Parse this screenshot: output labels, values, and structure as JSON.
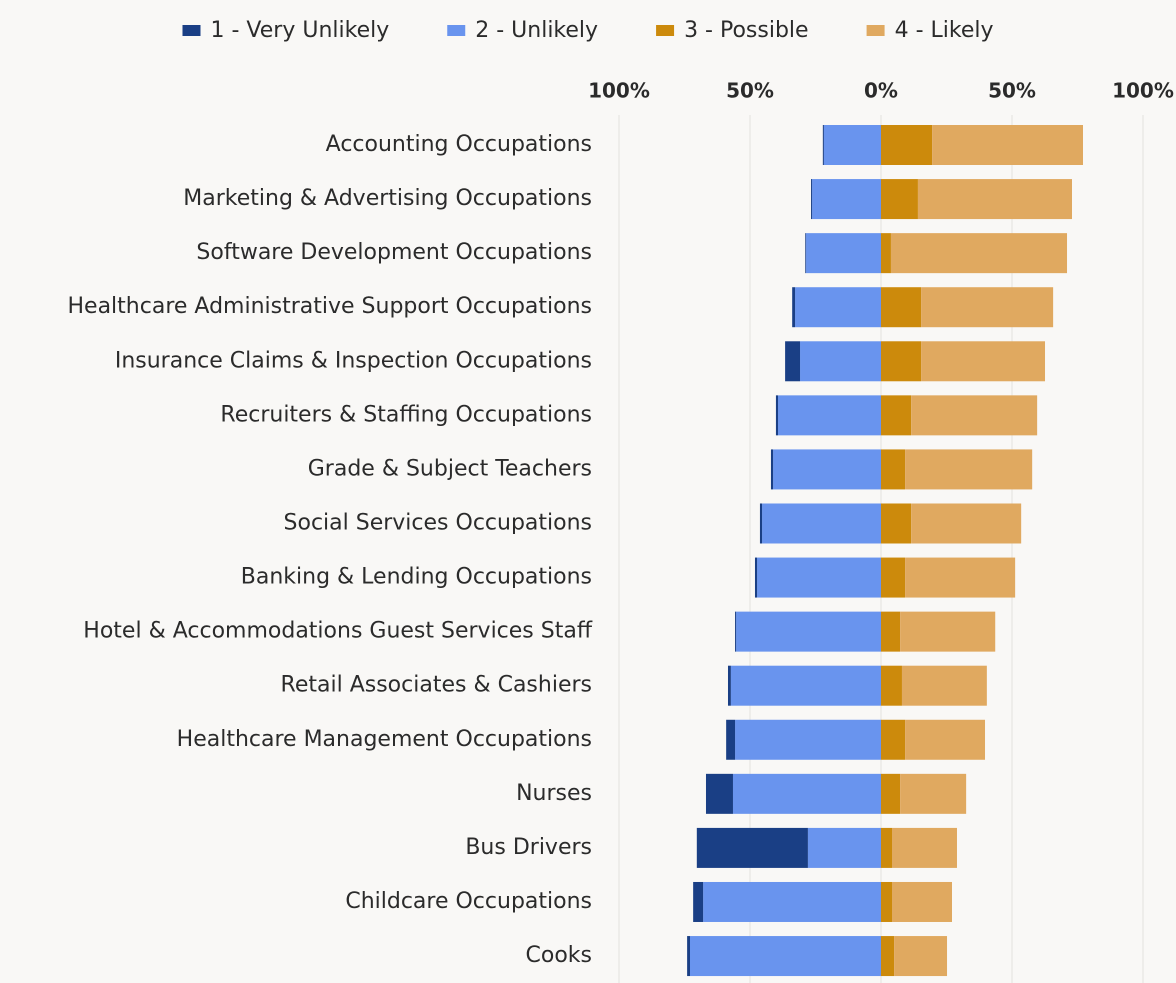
{
  "chart_data": {
    "type": "diverging_bar",
    "categories": [
      "Accounting Occupations",
      "Marketing & Advertising Occupations",
      "Software Development Occupations",
      "Healthcare Administrative Support Occupations",
      "Insurance Claims & Inspection Occupations",
      "Recruiters & Staffing Occupations",
      "Grade & Subject Teachers",
      "Social Services Occupations",
      "Banking & Lending Occupations",
      "Hotel & Accommodations Guest Services Staff",
      "Retail Associates & Cashiers",
      "Healthcare Management Occupations",
      "Nurses",
      "Bus Drivers",
      "Childcare Occupations",
      "Cooks"
    ],
    "series": [
      {
        "name": "1 - Very Unlikely",
        "color": "#1a3f85",
        "values": [
          -0.4,
          -0.4,
          -0.3,
          -1.1,
          -5.7,
          -0.8,
          -0.8,
          -0.8,
          -0.8,
          -0.4,
          -1.1,
          -3.4,
          -10.3,
          -42.4,
          -3.8,
          -1.1
        ]
      },
      {
        "name": "2 - Unlikely",
        "color": "#6994ee",
        "values": [
          -21.8,
          -26.3,
          -28.6,
          -32.8,
          -30.9,
          -39.3,
          -41.2,
          -45.4,
          -47.3,
          -55.3,
          -57.3,
          -55.7,
          -56.5,
          -27.9,
          -67.9,
          -72.9
        ]
      },
      {
        "name": "3 - Possible",
        "color": "#cc8a0c",
        "values": [
          19.5,
          14.1,
          3.8,
          15.3,
          15.3,
          11.5,
          9.2,
          11.5,
          9.2,
          7.3,
          8,
          9.2,
          7.3,
          4.2,
          4.2,
          5
        ]
      },
      {
        "name": "4 - Likely",
        "color": "#e0a960",
        "values": [
          57.6,
          58.8,
          67.2,
          50.4,
          47.3,
          48.1,
          48.5,
          42,
          42,
          36.3,
          32.4,
          30.5,
          25.2,
          24.8,
          22.9,
          20.2
        ]
      }
    ],
    "xlim": [
      -100,
      100
    ],
    "xticks": [
      {
        "value": -100,
        "label": "100%"
      },
      {
        "value": -50,
        "label": "50%"
      },
      {
        "value": 0,
        "label": "0%"
      },
      {
        "value": 50,
        "label": "50%"
      },
      {
        "value": 100,
        "label": "100%"
      }
    ],
    "grid": true
  }
}
